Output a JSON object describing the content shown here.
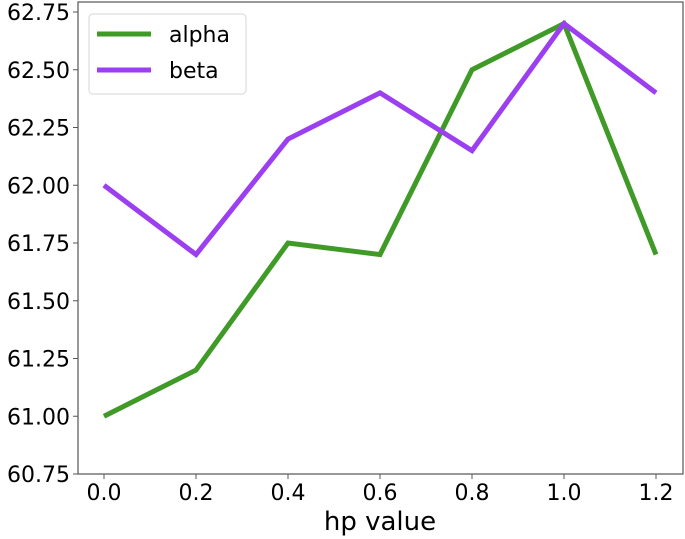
{
  "chart_data": {
    "type": "line",
    "title": "",
    "xlabel": "hp value",
    "ylabel": "",
    "x": [
      0.0,
      0.2,
      0.4,
      0.6,
      0.8,
      1.0,
      1.2
    ],
    "series": [
      {
        "name": "alpha",
        "color": "#3f9a27",
        "values": [
          61.0,
          61.2,
          61.75,
          61.7,
          62.5,
          62.7,
          61.7
        ]
      },
      {
        "name": "beta",
        "color": "#9b3ff0",
        "values": [
          62.0,
          61.7,
          62.2,
          62.4,
          62.15,
          62.7,
          62.4
        ]
      }
    ],
    "xlim": [
      -0.1,
      1.25
    ],
    "ylim": [
      60.75,
      62.79
    ],
    "xticks": [
      "0.0",
      "0.2",
      "0.4",
      "0.6",
      "0.8",
      "1.0",
      "1.2"
    ],
    "yticks": [
      "60.75",
      "61.00",
      "61.25",
      "61.50",
      "61.75",
      "62.00",
      "62.25",
      "62.50",
      "62.75"
    ],
    "grid": false,
    "legend_position": "upper left"
  }
}
